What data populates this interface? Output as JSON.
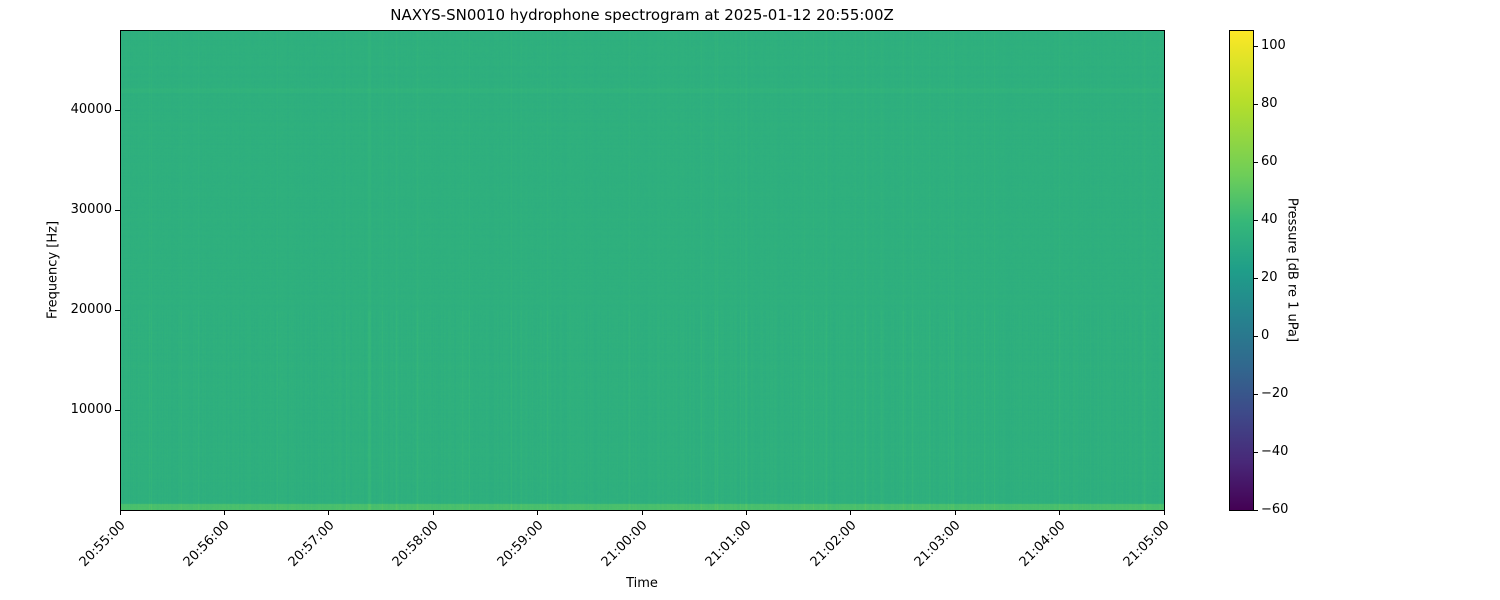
{
  "chart_data": {
    "type": "heatmap",
    "title": "NAXYS-SN0010 hydrophone spectrogram at 2025-01-12 20:55:00Z",
    "xlabel": "Time",
    "ylabel": "Frequency [Hz]",
    "colorbar_label": "Pressure [dB re 1 uPa]",
    "colormap": "viridis",
    "xlim": [
      "20:55:00",
      "21:05:00"
    ],
    "ylim": [
      0,
      48000
    ],
    "clim": [
      -60,
      105.6
    ],
    "x_ticks": [
      "20:55:00",
      "20:56:00",
      "20:57:00",
      "20:58:00",
      "20:59:00",
      "21:00:00",
      "21:01:00",
      "21:02:00",
      "21:03:00",
      "21:04:00",
      "21:05:00"
    ],
    "y_ticks": [
      10000,
      20000,
      30000,
      40000
    ],
    "colorbar_ticks": [
      -60,
      -40,
      -20,
      0,
      20,
      40,
      60,
      80,
      100
    ],
    "typical_level_db": 45,
    "grid": false
  }
}
